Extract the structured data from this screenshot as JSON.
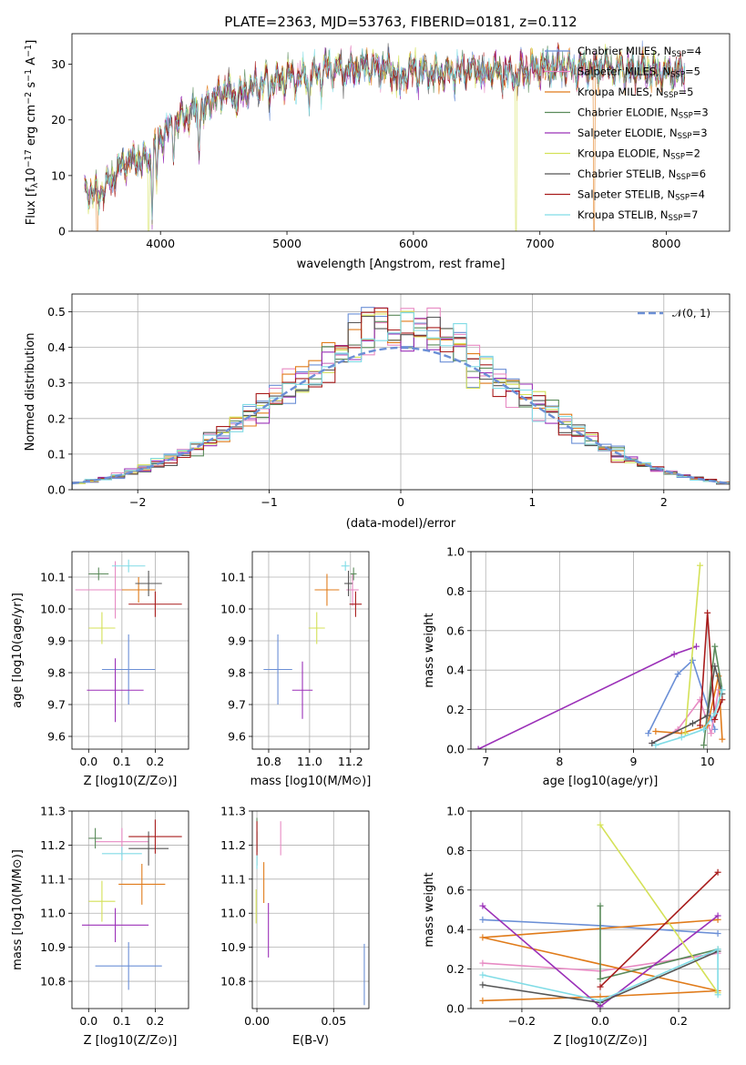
{
  "page_title": "PLATE=2363, MJD=53763, FIBERID=0181, z=0.112",
  "models": [
    {
      "name": "Chabrier MILES, N_SSP=4",
      "label": "Chabrier MILES, N",
      "sub": "SSP",
      "tail": "=4",
      "color": "#6b8fd6"
    },
    {
      "name": "Salpeter MILES, N_SSP=5",
      "label": "Salpeter MILES, N",
      "sub": "SSP",
      "tail": "=5",
      "color": "#e78ac3"
    },
    {
      "name": "Kroupa MILES, N_SSP=5",
      "label": "Kroupa MILES, N",
      "sub": "SSP",
      "tail": "=5",
      "color": "#e07b1a"
    },
    {
      "name": "Chabrier ELODIE, N_SSP=3",
      "label": "Chabrier ELODIE, N",
      "sub": "SSP",
      "tail": "=3",
      "color": "#5a8a5a"
    },
    {
      "name": "Salpeter ELODIE, N_SSP=3",
      "label": "Salpeter ELODIE, N",
      "sub": "SSP",
      "tail": "=3",
      "color": "#9b30b8"
    },
    {
      "name": "Kroupa ELODIE, N_SSP=2",
      "label": "Kroupa ELODIE, N",
      "sub": "SSP",
      "tail": "=2",
      "color": "#d4e157"
    },
    {
      "name": "Chabrier STELIB, N_SSP=6",
      "label": "Chabrier STELIB, N",
      "sub": "SSP",
      "tail": "=6",
      "color": "#555555"
    },
    {
      "name": "Salpeter STELIB, N_SSP=4",
      "label": "Salpeter STELIB, N",
      "sub": "SSP",
      "tail": "=4",
      "color": "#a81c1c"
    },
    {
      "name": "Kroupa STELIB, N_SSP=7",
      "label": "Kroupa STELIB, N",
      "sub": "SSP",
      "tail": "=7",
      "color": "#80dce6"
    }
  ],
  "chart_data": [
    {
      "id": "spectrum",
      "type": "line",
      "xlabel": "wavelength [Angstrom, rest frame]",
      "ylabel": "Flux [f_λ 10^-17 erg cm^-2 s^-1 A^-1]",
      "ylabel_parts": [
        "Flux [f",
        "λ",
        "10",
        "−17",
        " erg cm",
        "−2",
        " s",
        "−1",
        " A",
        "−1",
        "]"
      ],
      "xlim": [
        3300,
        8500
      ],
      "ylim": [
        0,
        35.5
      ],
      "xticks": [
        4000,
        5000,
        6000,
        7000,
        8000
      ],
      "yticks": [
        0,
        10,
        20,
        30
      ],
      "grid": false,
      "legend": "top-right",
      "x_range": [
        3400,
        8150
      ],
      "continuum_points": [
        [
          3400,
          7.5
        ],
        [
          3500,
          6.5
        ],
        [
          3600,
          9
        ],
        [
          3700,
          12
        ],
        [
          3800,
          13
        ],
        [
          3900,
          12.5
        ],
        [
          4000,
          17
        ],
        [
          4100,
          19
        ],
        [
          4200,
          21
        ],
        [
          4300,
          22
        ],
        [
          4400,
          23.5
        ],
        [
          4500,
          25
        ],
        [
          4600,
          24
        ],
        [
          4700,
          25.5
        ],
        [
          4800,
          26.5
        ],
        [
          4900,
          27
        ],
        [
          5000,
          27.5
        ],
        [
          5100,
          27.5
        ],
        [
          5200,
          28
        ],
        [
          5300,
          29.5
        ],
        [
          5400,
          29
        ],
        [
          5500,
          29
        ],
        [
          5600,
          29.5
        ],
        [
          5700,
          29.5
        ],
        [
          5800,
          29
        ],
        [
          5900,
          28
        ],
        [
          6000,
          29
        ],
        [
          6100,
          28.5
        ],
        [
          6200,
          28.5
        ],
        [
          6300,
          28.5
        ],
        [
          6400,
          29
        ],
        [
          6500,
          29
        ],
        [
          6600,
          29
        ],
        [
          6700,
          28.5
        ],
        [
          6800,
          28
        ],
        [
          6900,
          29
        ],
        [
          7000,
          29.5
        ],
        [
          7100,
          29.5
        ],
        [
          7200,
          29.5
        ],
        [
          7300,
          29
        ],
        [
          7400,
          29
        ],
        [
          7500,
          29.5
        ],
        [
          7600,
          29.5
        ],
        [
          7700,
          29
        ],
        [
          7800,
          29
        ],
        [
          7900,
          28.5
        ],
        [
          8000,
          28.5
        ],
        [
          8150,
          28.5
        ]
      ],
      "absorption_lines": [
        [
          3934,
          10
        ],
        [
          3969,
          8
        ],
        [
          4102,
          5
        ],
        [
          4304,
          7
        ],
        [
          4341,
          4
        ],
        [
          4861,
          4
        ],
        [
          5175,
          6
        ],
        [
          5270,
          3
        ],
        [
          5892,
          5
        ],
        [
          6563,
          3
        ],
        [
          7600,
          2
        ]
      ],
      "spikes": [
        {
          "x": 3500,
          "series": "Kroupa MILES, N_SSP=5"
        },
        {
          "x": 3908,
          "series": "Kroupa ELODIE, N_SSP=2"
        },
        {
          "x": 6810,
          "series": "Kroupa ELODIE, N_SSP=2"
        },
        {
          "x": 7430,
          "series": "Kroupa MILES, N_SSP=5"
        }
      ]
    },
    {
      "id": "residual-histogram",
      "type": "bar",
      "xlabel": "(data-model)/error",
      "ylabel": "Normed distribution",
      "xlim": [
        -2.5,
        2.5
      ],
      "ylim": [
        0,
        0.55
      ],
      "xticks": [
        -2,
        -1,
        0,
        1,
        2
      ],
      "yticks": [
        0.0,
        0.1,
        0.2,
        0.3,
        0.4,
        0.5
      ],
      "grid": true,
      "legend": "top-right",
      "reference_curve": {
        "name": "N(0,1)",
        "label": "𝒩(0, 1)",
        "color": "#6b8fd6",
        "mu": 0,
        "sigma": 1
      },
      "bin_width": 0.1,
      "bin_range": [
        -2.5,
        2.5
      ]
    },
    {
      "id": "age-vs-Z",
      "type": "scatter",
      "xlabel": "Z [log10(Z/Z⊙)]",
      "ylabel": "age [log10(age/yr)]",
      "xlim": [
        -0.05,
        0.3
      ],
      "ylim": [
        9.56,
        10.18
      ],
      "xticks": [
        0.0,
        0.1,
        0.2
      ],
      "yticks": [
        9.6,
        9.7,
        9.8,
        9.9,
        10.0,
        10.1
      ],
      "grid": true,
      "points": [
        {
          "x": 0.12,
          "y": 9.81,
          "xerr": 0.08,
          "yerr": 0.11
        },
        {
          "x": 0.08,
          "y": 10.06,
          "xerr": 0.12,
          "yerr": 0.09
        },
        {
          "x": 0.15,
          "y": 10.06,
          "xerr": 0.05,
          "yerr": 0.04
        },
        {
          "x": 0.03,
          "y": 10.11,
          "xerr": 0.03,
          "yerr": 0.02
        },
        {
          "x": 0.08,
          "y": 9.745,
          "xerr": 0.085,
          "yerr": 0.1
        },
        {
          "x": 0.04,
          "y": 9.94,
          "xerr": 0.04,
          "yerr": 0.05
        },
        {
          "x": 0.18,
          "y": 10.08,
          "xerr": 0.04,
          "yerr": 0.04
        },
        {
          "x": 0.2,
          "y": 10.015,
          "xerr": 0.08,
          "yerr": 0.04
        },
        {
          "x": 0.12,
          "y": 10.135,
          "xerr": 0.05,
          "yerr": 0.02
        }
      ]
    },
    {
      "id": "age-vs-mass",
      "type": "scatter",
      "xlabel": "mass [log10(M/M⊙)]",
      "ylabel": "",
      "xlim": [
        10.72,
        11.29
      ],
      "ylim": [
        9.56,
        10.18
      ],
      "xticks": [
        10.8,
        11.0,
        11.2
      ],
      "yticks": [
        9.6,
        9.7,
        9.8,
        9.9,
        10.0,
        10.1
      ],
      "grid": true,
      "points": [
        {
          "x": 10.845,
          "y": 9.81,
          "xerr": 0.07,
          "yerr": 0.11
        },
        {
          "x": 11.21,
          "y": 10.06,
          "xerr": 0.03,
          "yerr": 0.05
        },
        {
          "x": 11.085,
          "y": 10.06,
          "xerr": 0.06,
          "yerr": 0.05
        },
        {
          "x": 11.215,
          "y": 10.11,
          "xerr": 0.015,
          "yerr": 0.02
        },
        {
          "x": 10.965,
          "y": 9.745,
          "xerr": 0.05,
          "yerr": 0.09
        },
        {
          "x": 11.035,
          "y": 9.94,
          "xerr": 0.04,
          "yerr": 0.05
        },
        {
          "x": 11.19,
          "y": 10.08,
          "xerr": 0.02,
          "yerr": 0.04
        },
        {
          "x": 11.225,
          "y": 10.015,
          "xerr": 0.03,
          "yerr": 0.04
        },
        {
          "x": 11.175,
          "y": 10.135,
          "xerr": 0.02,
          "yerr": 0.015
        }
      ]
    },
    {
      "id": "mass-weight-vs-age",
      "type": "line",
      "xlabel": "age [log10(age/yr)]",
      "ylabel": "mass weight",
      "xlim": [
        6.8,
        10.3
      ],
      "ylim": [
        0,
        1
      ],
      "xticks": [
        7,
        8,
        9,
        10
      ],
      "yticks": [
        0.0,
        0.2,
        0.4,
        0.6,
        0.8,
        1.0
      ],
      "grid": true,
      "series": [
        {
          "points": [
            [
              9.2,
              0.08
            ],
            [
              9.6,
              0.38
            ],
            [
              9.8,
              0.45
            ],
            [
              10.1,
              0.1
            ]
          ]
        },
        {
          "points": [
            [
              9.25,
              0.03
            ],
            [
              9.6,
              0.1
            ],
            [
              9.9,
              0.25
            ],
            [
              10.05,
              0.08
            ],
            [
              10.15,
              0.3
            ]
          ]
        },
        {
          "points": [
            [
              9.3,
              0.09
            ],
            [
              9.65,
              0.08
            ],
            [
              10.0,
              0.12
            ],
            [
              10.15,
              0.37
            ],
            [
              10.2,
              0.05
            ]
          ]
        },
        {
          "points": [
            [
              9.95,
              0.02
            ],
            [
              10.1,
              0.52
            ],
            [
              10.2,
              0.3
            ]
          ]
        },
        {
          "points": [
            [
              6.9,
              0.0
            ],
            [
              9.55,
              0.48
            ],
            [
              9.85,
              0.52
            ]
          ]
        },
        {
          "points": [
            [
              9.7,
              0.08
            ],
            [
              9.9,
              0.93
            ]
          ]
        },
        {
          "points": [
            [
              9.25,
              0.03
            ],
            [
              9.8,
              0.13
            ],
            [
              10.0,
              0.17
            ],
            [
              10.1,
              0.42
            ],
            [
              10.2,
              0.28
            ]
          ]
        },
        {
          "points": [
            [
              9.9,
              0.12
            ],
            [
              10.0,
              0.69
            ],
            [
              10.1,
              0.15
            ],
            [
              10.2,
              0.25
            ]
          ]
        },
        {
          "points": [
            [
              9.3,
              0.02
            ],
            [
              9.65,
              0.06
            ],
            [
              9.95,
              0.1
            ],
            [
              10.1,
              0.18
            ],
            [
              10.2,
              0.3
            ]
          ]
        }
      ]
    },
    {
      "id": "mass-vs-Z",
      "type": "scatter",
      "xlabel": "Z [log10(Z/Z⊙)]",
      "ylabel": "mass [log10(M/M⊙)]",
      "xlim": [
        -0.05,
        0.3
      ],
      "ylim": [
        10.72,
        11.3
      ],
      "xticks": [
        0.0,
        0.1,
        0.2
      ],
      "yticks": [
        10.8,
        10.9,
        11.0,
        11.1,
        11.2,
        11.3
      ],
      "grid": true,
      "points": [
        {
          "x": 0.12,
          "y": 10.845,
          "xerr": 0.1,
          "yerr": 0.07
        },
        {
          "x": 0.1,
          "y": 11.21,
          "xerr": 0.08,
          "yerr": 0.04
        },
        {
          "x": 0.16,
          "y": 11.085,
          "xerr": 0.07,
          "yerr": 0.06
        },
        {
          "x": 0.02,
          "y": 11.22,
          "xerr": 0.02,
          "yerr": 0.03
        },
        {
          "x": 0.08,
          "y": 10.965,
          "xerr": 0.1,
          "yerr": 0.05
        },
        {
          "x": 0.04,
          "y": 11.035,
          "xerr": 0.04,
          "yerr": 0.06
        },
        {
          "x": 0.18,
          "y": 11.19,
          "xerr": 0.06,
          "yerr": 0.05
        },
        {
          "x": 0.2,
          "y": 11.225,
          "xerr": 0.08,
          "yerr": 0.05
        },
        {
          "x": 0.1,
          "y": 11.175,
          "xerr": 0.06,
          "yerr": 0.02
        }
      ]
    },
    {
      "id": "mass-vs-ebv",
      "type": "scatter",
      "xlabel": "E(B-V)",
      "ylabel": "",
      "xlim": [
        -0.003,
        0.073
      ],
      "ylim": [
        10.72,
        11.3
      ],
      "xticks": [
        0.0,
        0.05
      ],
      "yticks": [
        10.8,
        10.9,
        11.0,
        11.1,
        11.2,
        11.3
      ],
      "grid": true,
      "points": [
        {
          "x": 0.07,
          "y": 10.82,
          "xerr": 0.0,
          "yerr": 0.09
        },
        {
          "x": 0.0155,
          "y": 11.22,
          "xerr": 0.0,
          "yerr": 0.05
        },
        {
          "x": 0.0045,
          "y": 11.09,
          "xerr": 0.0,
          "yerr": 0.06
        },
        {
          "x": 0.0,
          "y": 11.23,
          "xerr": 0.0,
          "yerr": 0.05
        },
        {
          "x": 0.0075,
          "y": 10.95,
          "xerr": 0.0,
          "yerr": 0.08
        },
        {
          "x": -0.0005,
          "y": 11.02,
          "xerr": 0.0,
          "yerr": 0.05
        },
        {
          "x": 0.0,
          "y": 11.19,
          "xerr": 0.0,
          "yerr": 0.05
        },
        {
          "x": 0.0,
          "y": 11.22,
          "xerr": 0.0,
          "yerr": 0.05
        },
        {
          "x": 0.0,
          "y": 11.15,
          "xerr": 0.0,
          "yerr": 0.02
        }
      ]
    },
    {
      "id": "mass-weight-vs-Z",
      "type": "line",
      "xlabel": "Z [log10(Z/Z⊙)]",
      "ylabel": "mass weight",
      "xlim": [
        -0.33,
        0.33
      ],
      "ylim": [
        0,
        1
      ],
      "xticks": [
        -0.2,
        0.0,
        0.2
      ],
      "yticks": [
        0.0,
        0.2,
        0.4,
        0.6,
        0.8,
        1.0
      ],
      "grid": true,
      "series": [
        {
          "points": [
            [
              -0.3,
              0.45
            ],
            [
              0.0,
              0.42
            ],
            [
              0.3,
              0.38
            ]
          ]
        },
        {
          "points": [
            [
              -0.3,
              0.23
            ],
            [
              0.0,
              0.19
            ],
            [
              0.3,
              0.28
            ]
          ]
        },
        {
          "points": [
            [
              -0.3,
              0.04
            ],
            [
              0.0,
              0.06
            ],
            [
              0.3,
              0.09
            ],
            [
              -0.3,
              0.36
            ],
            [
              0.3,
              0.45
            ]
          ]
        },
        {
          "points": [
            [
              0.0,
              0.52
            ],
            [
              0.0,
              0.15
            ],
            [
              0.3,
              0.3
            ]
          ]
        },
        {
          "points": [
            [
              -0.3,
              0.52
            ],
            [
              0.0,
              0.01
            ],
            [
              0.3,
              0.47
            ]
          ]
        },
        {
          "points": [
            [
              0.0,
              0.93
            ],
            [
              0.3,
              0.08
            ]
          ]
        },
        {
          "points": [
            [
              -0.3,
              0.12
            ],
            [
              0.0,
              0.03
            ],
            [
              0.3,
              0.29
            ]
          ]
        },
        {
          "points": [
            [
              0.0,
              0.11
            ],
            [
              0.3,
              0.69
            ]
          ]
        },
        {
          "points": [
            [
              -0.3,
              0.17
            ],
            [
              0.0,
              0.04
            ],
            [
              0.3,
              0.3
            ],
            [
              0.3,
              0.07
            ]
          ]
        }
      ]
    }
  ]
}
